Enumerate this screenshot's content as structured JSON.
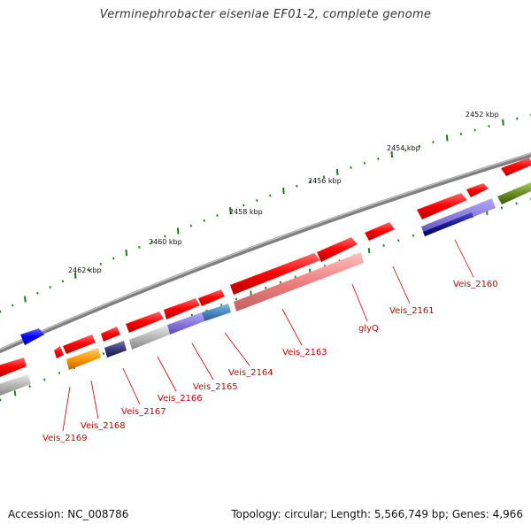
{
  "title": "Verminephrobacter eiseniae EF01-2, complete genome",
  "accession": "Accession: NC_008786",
  "topology": "Topology: circular; Length: 5,566,749 bp; Genes: 4,966",
  "scale_labels": [
    "2452 kbp",
    "2454 kbp",
    "2456 kbp",
    "2458 kbp",
    "2460 kbp",
    "2462 kbp"
  ],
  "gene_labels": [
    "Veis_2160",
    "Veis_2161",
    "glyQ",
    "Veis_2163",
    "Veis_2164",
    "Veis_2165",
    "Veis_2166",
    "Veis_2167",
    "Veis_2168",
    "Veis_2169"
  ],
  "colors": {
    "backbone": "#808080",
    "cds_red": "#ff0000",
    "label_red": "#cc0000",
    "tick_green": "#1a7a1a",
    "pink": "#f08080",
    "light_purple": "#8a7ae0",
    "steel_blue": "#4a8ac0",
    "navy": "#1a1a8a",
    "dark_slate": "#3a3a7a",
    "olive": "#6b8e23",
    "orange": "#ff9900",
    "gray": "#b0b0b0",
    "blue": "#0000ff"
  }
}
